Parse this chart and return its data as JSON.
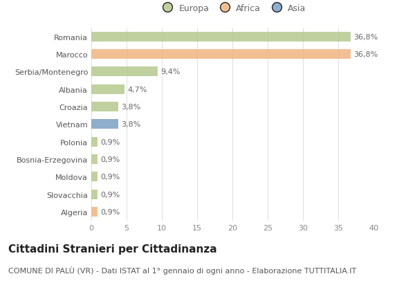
{
  "categories": [
    "Romania",
    "Marocco",
    "Serbia/Montenegro",
    "Albania",
    "Croazia",
    "Vietnam",
    "Polonia",
    "Bosnia-Erzegovina",
    "Moldova",
    "Slovacchia",
    "Algeria"
  ],
  "values": [
    36.8,
    36.8,
    9.4,
    4.7,
    3.8,
    3.8,
    0.9,
    0.9,
    0.9,
    0.9,
    0.9
  ],
  "labels": [
    "36,8%",
    "36,8%",
    "9,4%",
    "4,7%",
    "3,8%",
    "3,8%",
    "0,9%",
    "0,9%",
    "0,9%",
    "0,9%",
    "0,9%"
  ],
  "colors": [
    "#b5c98e",
    "#f0b482",
    "#b5c98e",
    "#b5c98e",
    "#b5c98e",
    "#7b9fc4",
    "#b5c98e",
    "#b5c98e",
    "#b5c98e",
    "#b5c98e",
    "#f0b482"
  ],
  "legend_labels": [
    "Europa",
    "Africa",
    "Asia"
  ],
  "legend_colors": [
    "#b5c98e",
    "#f0b482",
    "#7b9fc4"
  ],
  "xlim": [
    0,
    40
  ],
  "xticks": [
    0,
    5,
    10,
    15,
    20,
    25,
    30,
    35,
    40
  ],
  "title": "Cittadini Stranieri per Cittadinanza",
  "subtitle": "COMUNE DI PALÙ (VR) - Dati ISTAT al 1° gennaio di ogni anno - Elaborazione TUTTITALIA.IT",
  "background_color": "#ffffff",
  "bar_height": 0.55,
  "title_fontsize": 11,
  "subtitle_fontsize": 8,
  "label_fontsize": 8,
  "ytick_fontsize": 8,
  "xtick_fontsize": 8
}
